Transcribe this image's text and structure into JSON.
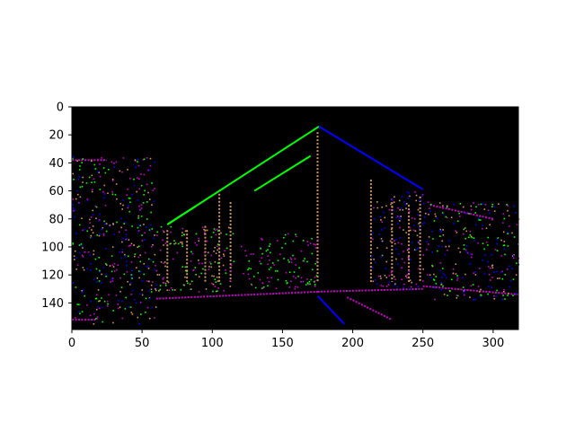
{
  "chart_data": {
    "type": "heatmap",
    "title": "",
    "xlabel": "",
    "ylabel": "",
    "xlim": [
      0,
      318
    ],
    "ylim": [
      159,
      0
    ],
    "y_inverted": true,
    "x_ticks": [
      0,
      50,
      100,
      150,
      200,
      250,
      300
    ],
    "y_ticks": [
      0,
      20,
      40,
      60,
      80,
      100,
      120,
      140
    ],
    "x_tick_labels": [
      "0",
      "50",
      "100",
      "150",
      "200",
      "250",
      "300"
    ],
    "y_tick_labels": [
      "0",
      "20",
      "40",
      "60",
      "80",
      "100",
      "120",
      "140"
    ],
    "background_color": "#000000",
    "colors": {
      "green": "#00ff00",
      "blue": "#0000ff",
      "magenta": "#cc00cc",
      "orange": "#d2955f"
    },
    "segments": [
      {
        "color": "green",
        "x1": 68,
        "y1": 84,
        "x2": 176,
        "y2": 14
      },
      {
        "color": "blue",
        "x1": 176,
        "y1": 14,
        "x2": 250,
        "y2": 59
      },
      {
        "color": "green",
        "x1": 68,
        "y1": 84,
        "x2": 88,
        "y2": 71
      },
      {
        "color": "green",
        "x1": 130,
        "y1": 60,
        "x2": 170,
        "y2": 35
      },
      {
        "color": "blue",
        "x1": 175,
        "y1": 135,
        "x2": 194,
        "y2": 155
      },
      {
        "color": "magenta",
        "x1": 196,
        "y1": 136,
        "x2": 228,
        "y2": 152
      },
      {
        "color": "magenta",
        "x1": 60,
        "y1": 137,
        "x2": 175,
        "y2": 132
      },
      {
        "color": "magenta",
        "x1": 175,
        "y1": 132,
        "x2": 250,
        "y2": 130
      },
      {
        "color": "magenta",
        "x1": 250,
        "y1": 128,
        "x2": 318,
        "y2": 134
      },
      {
        "color": "magenta",
        "x1": 0,
        "y1": 152,
        "x2": 18,
        "y2": 152
      },
      {
        "color": "magenta",
        "x1": 0,
        "y1": 38,
        "x2": 25,
        "y2": 38
      },
      {
        "color": "magenta",
        "x1": 255,
        "y1": 70,
        "x2": 300,
        "y2": 80
      },
      {
        "color": "orange",
        "x1": 175,
        "y1": 18,
        "x2": 175,
        "y2": 125
      },
      {
        "color": "orange",
        "x1": 213,
        "y1": 52,
        "x2": 213,
        "y2": 125
      },
      {
        "color": "orange",
        "x1": 105,
        "y1": 62,
        "x2": 105,
        "y2": 125
      },
      {
        "color": "orange",
        "x1": 68,
        "y1": 88,
        "x2": 68,
        "y2": 125
      },
      {
        "color": "orange",
        "x1": 248,
        "y1": 64,
        "x2": 248,
        "y2": 125
      },
      {
        "color": "orange",
        "x1": 228,
        "y1": 68,
        "x2": 228,
        "y2": 125
      },
      {
        "color": "orange",
        "x1": 113,
        "y1": 68,
        "x2": 113,
        "y2": 125
      },
      {
        "color": "orange",
        "x1": 82,
        "y1": 88,
        "x2": 82,
        "y2": 125
      },
      {
        "color": "orange",
        "x1": 95,
        "y1": 85,
        "x2": 95,
        "y2": 125
      },
      {
        "color": "orange",
        "x1": 240,
        "y1": 70,
        "x2": 240,
        "y2": 125
      }
    ],
    "clusters": [
      {
        "x": [
          0,
          60
        ],
        "y": [
          35,
          155
        ],
        "colors": [
          "green",
          "blue",
          "magenta",
          "orange"
        ]
      },
      {
        "x": [
          255,
          318
        ],
        "y": [
          68,
          138
        ],
        "colors": [
          "green",
          "blue",
          "magenta",
          "orange"
        ]
      },
      {
        "x": [
          60,
          115
        ],
        "y": [
          85,
          132
        ],
        "colors": [
          "green",
          "magenta",
          "orange"
        ]
      },
      {
        "x": [
          120,
          175
        ],
        "y": [
          90,
          130
        ],
        "colors": [
          "green",
          "magenta"
        ]
      },
      {
        "x": [
          213,
          255
        ],
        "y": [
          60,
          130
        ],
        "colors": [
          "blue",
          "magenta",
          "orange"
        ]
      }
    ]
  }
}
